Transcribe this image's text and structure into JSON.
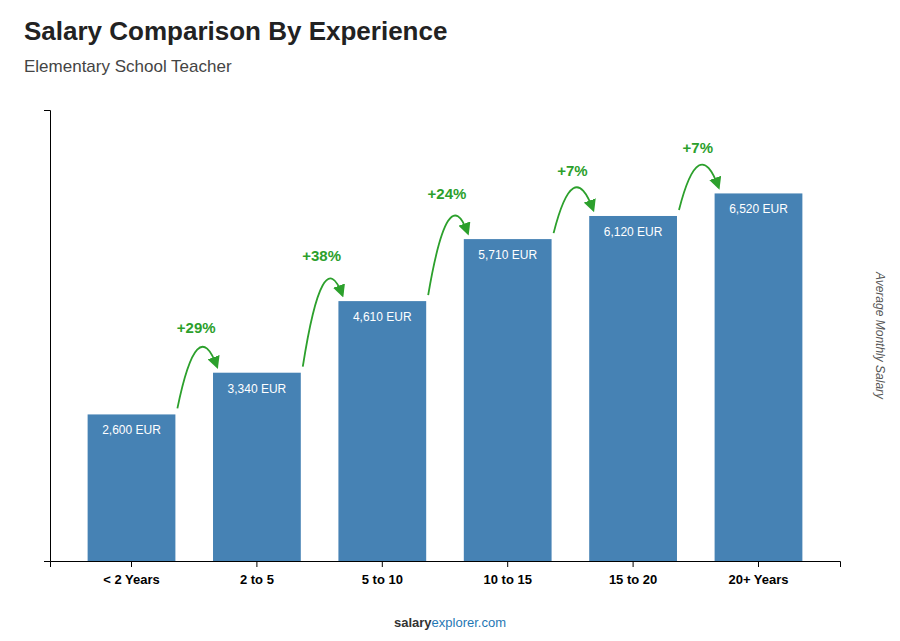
{
  "chart_data": {
    "type": "bar",
    "title": "Salary Comparison By Experience",
    "subtitle": "Elementary School Teacher",
    "y_label": "Average Monthly Salary",
    "categories": [
      "< 2 Years",
      "2 to 5",
      "5 to 10",
      "10 to 15",
      "15 to 20",
      "20+ Years"
    ],
    "values": [
      2600,
      3340,
      4610,
      5710,
      6120,
      6520
    ],
    "value_labels": [
      "2,600 EUR",
      "3,340 EUR",
      "4,610 EUR",
      "5,710 EUR",
      "6,120 EUR",
      "6,520 EUR"
    ],
    "data_labels": true,
    "annotations": [
      "+29%",
      "+38%",
      "+24%",
      "+7%",
      "+7%"
    ],
    "watermark": [
      "salary",
      "explorer.com"
    ],
    "ylim": [
      0,
      8000
    ],
    "yticks": [],
    "tick_labels": "x",
    "grid": false
  }
}
